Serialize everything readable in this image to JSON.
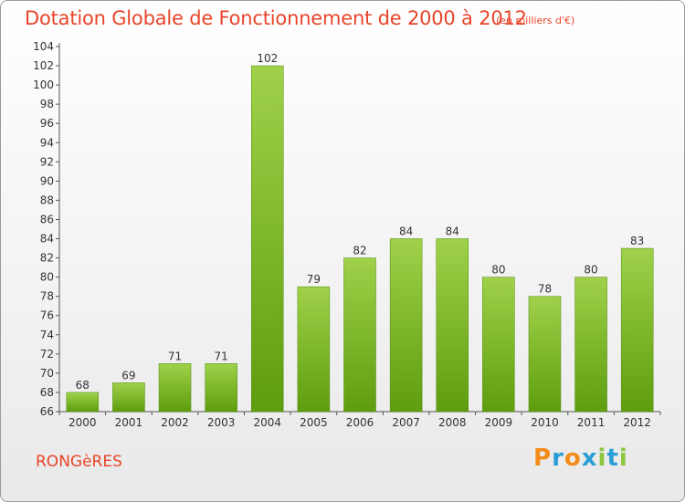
{
  "header": {
    "title": "Dotation Globale de Fonctionnement de 2000 à 2012",
    "subtitle": "(en milliers d'€)"
  },
  "footer": {
    "place": "RONGèRES",
    "logo_text": "Proxiti"
  },
  "colors": {
    "title": "#e8452a",
    "bar_light": "#9fd14a",
    "bar_dark": "#5e9d0e",
    "logo_letters": [
      "#f28c1b",
      "#2a9fd6",
      "#f28c1b",
      "#2a9fd6",
      "#8cc63f",
      "#2a9fd6",
      "#8cc63f"
    ]
  },
  "chart_data": {
    "type": "bar",
    "title": "Dotation Globale de Fonctionnement de 2000 à 2012",
    "xlabel": "",
    "ylabel": "",
    "categories": [
      "2000",
      "2001",
      "2002",
      "2003",
      "2004",
      "2005",
      "2006",
      "2007",
      "2008",
      "2009",
      "2010",
      "2011",
      "2012"
    ],
    "values": [
      68,
      69,
      71,
      71,
      102,
      79,
      82,
      84,
      84,
      80,
      78,
      80,
      83
    ],
    "ylim": [
      66,
      104
    ],
    "yticks": [
      66,
      68,
      70,
      72,
      74,
      76,
      78,
      80,
      82,
      84,
      86,
      88,
      90,
      92,
      94,
      96,
      98,
      100,
      102,
      104
    ],
    "grid": false,
    "data_labels": true
  }
}
